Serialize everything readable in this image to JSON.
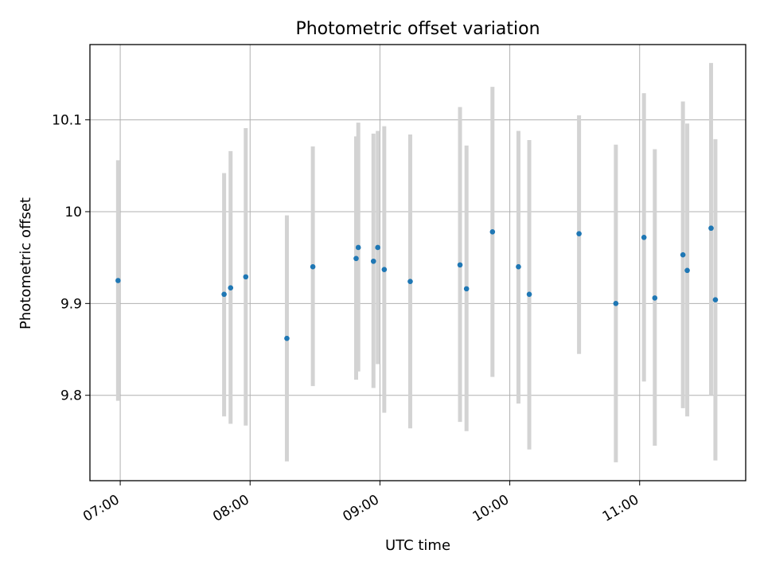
{
  "chart_data": {
    "type": "scatter",
    "title": "Photometric offset variation",
    "xlabel": "UTC time",
    "ylabel": "Photometric offset",
    "xlim": [
      "06:46",
      "11:49"
    ],
    "ylim": [
      9.707,
      10.182
    ],
    "x_ticks": [
      "07:00",
      "08:00",
      "09:00",
      "10:00",
      "11:00"
    ],
    "y_ticks": [
      9.8,
      9.9,
      10.0,
      10.1
    ],
    "grid": true,
    "point_color": "#1f77b4",
    "errorbar_color": "#d3d3d3",
    "points": [
      {
        "time": "06:59",
        "y": 9.925,
        "err_low": 9.794,
        "err_high": 10.056
      },
      {
        "time": "07:48",
        "y": 9.91,
        "err_low": 9.777,
        "err_high": 10.042
      },
      {
        "time": "07:51",
        "y": 9.917,
        "err_low": 9.769,
        "err_high": 10.066
      },
      {
        "time": "07:58",
        "y": 9.929,
        "err_low": 9.767,
        "err_high": 10.091
      },
      {
        "time": "08:17",
        "y": 9.862,
        "err_low": 9.728,
        "err_high": 9.996
      },
      {
        "time": "08:29",
        "y": 9.94,
        "err_low": 9.81,
        "err_high": 10.071
      },
      {
        "time": "08:49",
        "y": 9.949,
        "err_low": 9.817,
        "err_high": 10.082
      },
      {
        "time": "08:50",
        "y": 9.961,
        "err_low": 9.826,
        "err_high": 10.097
      },
      {
        "time": "08:57",
        "y": 9.946,
        "err_low": 9.808,
        "err_high": 10.085
      },
      {
        "time": "08:59",
        "y": 9.961,
        "err_low": 9.834,
        "err_high": 10.088
      },
      {
        "time": "09:02",
        "y": 9.937,
        "err_low": 9.781,
        "err_high": 10.093
      },
      {
        "time": "09:14",
        "y": 9.924,
        "err_low": 9.764,
        "err_high": 10.084
      },
      {
        "time": "09:37",
        "y": 9.942,
        "err_low": 9.771,
        "err_high": 10.114
      },
      {
        "time": "09:40",
        "y": 9.916,
        "err_low": 9.761,
        "err_high": 10.072
      },
      {
        "time": "09:52",
        "y": 9.978,
        "err_low": 9.82,
        "err_high": 10.136
      },
      {
        "time": "10:04",
        "y": 9.94,
        "err_low": 9.791,
        "err_high": 10.088
      },
      {
        "time": "10:09",
        "y": 9.91,
        "err_low": 9.741,
        "err_high": 10.078
      },
      {
        "time": "10:32",
        "y": 9.976,
        "err_low": 9.845,
        "err_high": 10.105
      },
      {
        "time": "10:49",
        "y": 9.9,
        "err_low": 9.727,
        "err_high": 10.073
      },
      {
        "time": "11:02",
        "y": 9.972,
        "err_low": 9.815,
        "err_high": 10.129
      },
      {
        "time": "11:07",
        "y": 9.906,
        "err_low": 9.745,
        "err_high": 10.068
      },
      {
        "time": "11:20",
        "y": 9.953,
        "err_low": 9.786,
        "err_high": 10.12
      },
      {
        "time": "11:22",
        "y": 9.936,
        "err_low": 9.777,
        "err_high": 10.096
      },
      {
        "time": "11:33",
        "y": 9.982,
        "err_low": 9.8,
        "err_high": 10.162
      },
      {
        "time": "11:35",
        "y": 9.904,
        "err_low": 9.729,
        "err_high": 10.079
      }
    ]
  }
}
